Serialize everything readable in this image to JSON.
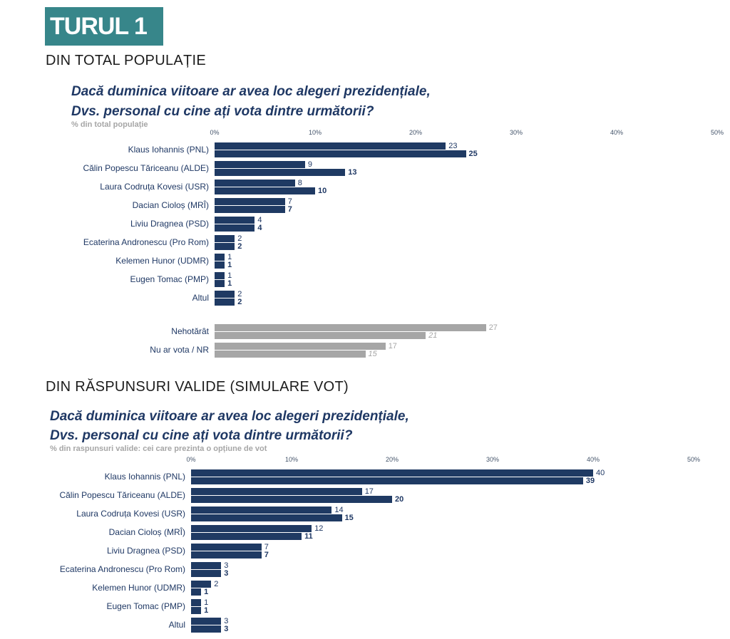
{
  "banner": {
    "label": "TURUL 1"
  },
  "sections": [
    {
      "heading": "DIN TOTAL POPULAȚIE"
    },
    {
      "heading": "DIN RĂSPUNSURI VALIDE (SIMULARE VOT)"
    }
  ],
  "colors": {
    "banner_bg": "#37868A",
    "bar_navy": "#1F3A63",
    "bar_gray": "#A6A6A6",
    "text_navy": "#1F3864",
    "text_gray": "#A6A6A6"
  },
  "chart_data": [
    {
      "type": "bar",
      "orientation": "horizontal",
      "title_line1": "Dacă duminica viitoare ar avea loc alegeri prezidențiale,",
      "title_line2": "Dvs. personal cu cine ați vota dintre următorii?",
      "subtitle": "% din total populație",
      "xlim": [
        0,
        50
      ],
      "axis_ticks": [
        "0%",
        "10%",
        "20%",
        "30%",
        "40%",
        "50%"
      ],
      "grid": false,
      "legend": false,
      "bar_color": "#1F3A63",
      "undecided_bar_color": "#A6A6A6",
      "categories": [
        "Klaus Iohannis (PNL)",
        "Călin Popescu Tăriceanu (ALDE)",
        "Laura Codruța Kovesi (USR)",
        "Dacian Cioloș (MRÎ)",
        "Liviu Dragnea (PSD)",
        "Ecaterina Andronescu (Pro Rom)",
        "Kelemen Hunor (UDMR)",
        "Eugen Tomac (PMP)",
        "Altul"
      ],
      "series": [
        {
          "name": "upper_bar",
          "values": [
            23,
            9,
            8,
            7,
            4,
            2,
            1,
            1,
            2
          ]
        },
        {
          "name": "lower_bar",
          "values": [
            25,
            13,
            10,
            7,
            4,
            2,
            1,
            1,
            2
          ]
        }
      ],
      "undecided_categories": [
        "Nehotărât",
        "Nu ar vota / NR"
      ],
      "undecided_series": [
        {
          "name": "upper_bar",
          "values": [
            27,
            17
          ]
        },
        {
          "name": "lower_bar",
          "values": [
            21,
            15
          ]
        }
      ]
    },
    {
      "type": "bar",
      "orientation": "horizontal",
      "title_line1": "Dacă duminica viitoare ar avea loc alegeri prezidențiale,",
      "title_line2": "Dvs. personal cu cine ați vota dintre următorii?",
      "subtitle": "% din raspunsuri valide: cei care prezinta o opțiune de vot",
      "xlim": [
        0,
        50
      ],
      "axis_ticks": [
        "0%",
        "10%",
        "20%",
        "30%",
        "40%",
        "50%"
      ],
      "grid": false,
      "legend": false,
      "bar_color": "#1F3A63",
      "categories": [
        "Klaus Iohannis (PNL)",
        "Călin Popescu Tăriceanu (ALDE)",
        "Laura Codruța Kovesi (USR)",
        "Dacian Cioloș (MRÎ)",
        "Liviu Dragnea (PSD)",
        "Ecaterina Andronescu (Pro Rom)",
        "Kelemen Hunor (UDMR)",
        "Eugen Tomac (PMP)",
        "Altul"
      ],
      "series": [
        {
          "name": "upper_bar",
          "values": [
            40,
            17,
            14,
            12,
            7,
            3,
            2,
            1,
            3
          ]
        },
        {
          "name": "lower_bar",
          "values": [
            39,
            20,
            15,
            11,
            7,
            3,
            1,
            1,
            3
          ]
        }
      ]
    }
  ]
}
